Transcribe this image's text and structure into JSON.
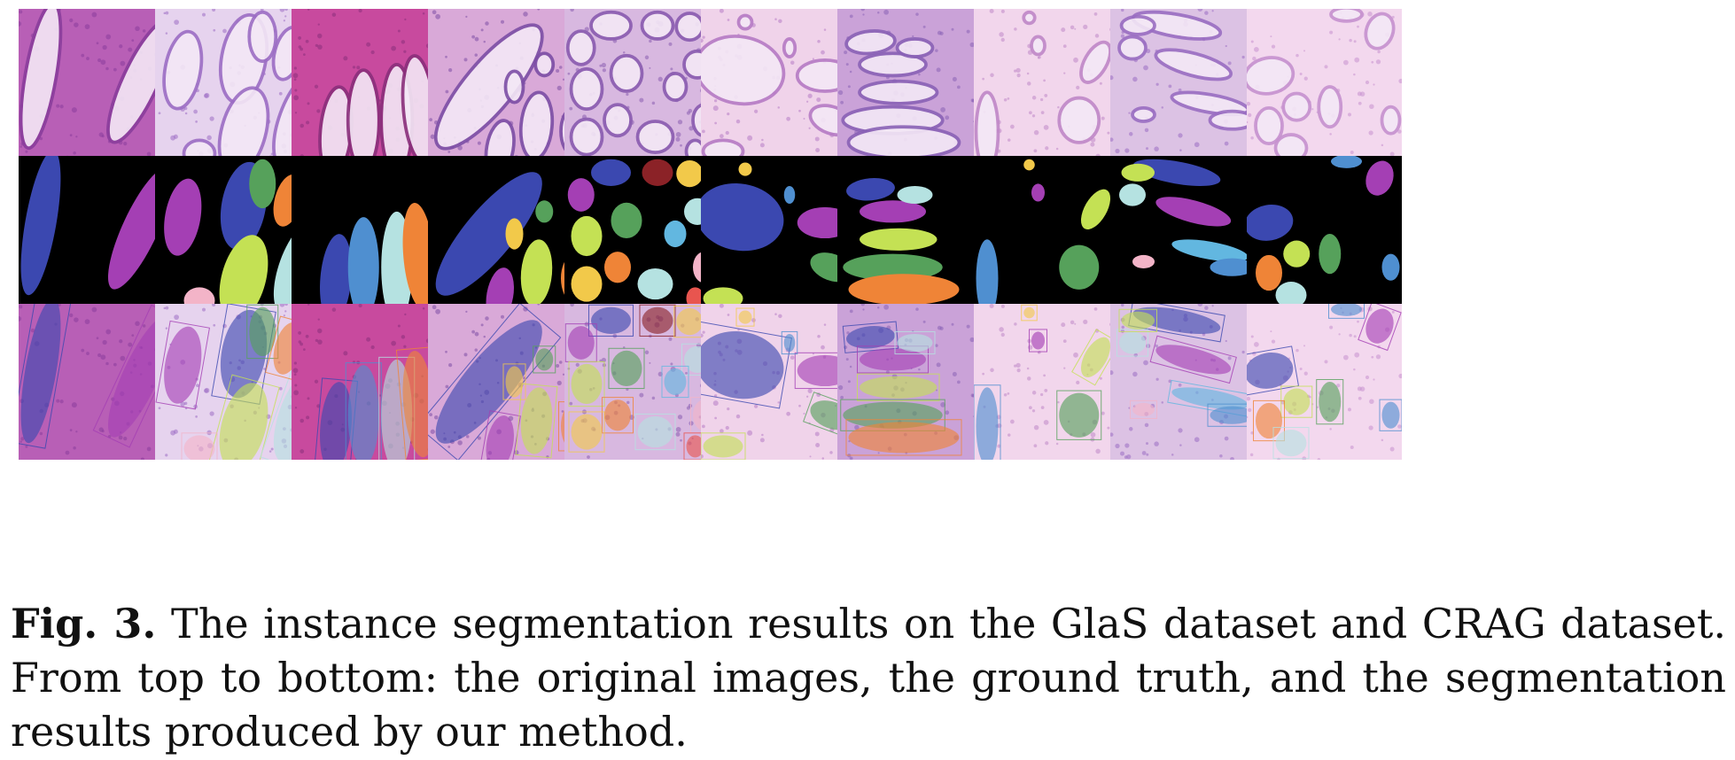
{
  "figure": {
    "label": "Fig. 3.",
    "caption": "The instance segmentation results on the GlaS dataset and CRAG dataset. From top to bottom: the original images, the ground truth, and the segmentation results produced by our method."
  },
  "rows": [
    "original-images",
    "ground-truth",
    "segmentation-results"
  ],
  "columns": 10,
  "colors": {
    "mask_background": "#000000",
    "tissue_purple": "#c14fc0",
    "tissue_pink": "#ecc9e4",
    "tissue_lavender": "#c8a8de",
    "instance_palette": [
      "#3b48b0",
      "#a43fb4",
      "#56a15b",
      "#ef8437",
      "#c4e154",
      "#b5e2e1",
      "#f2c94a",
      "#4f8fd0",
      "#f3b4c8",
      "#8b2227",
      "#e8554f",
      "#62b7e0"
    ]
  }
}
